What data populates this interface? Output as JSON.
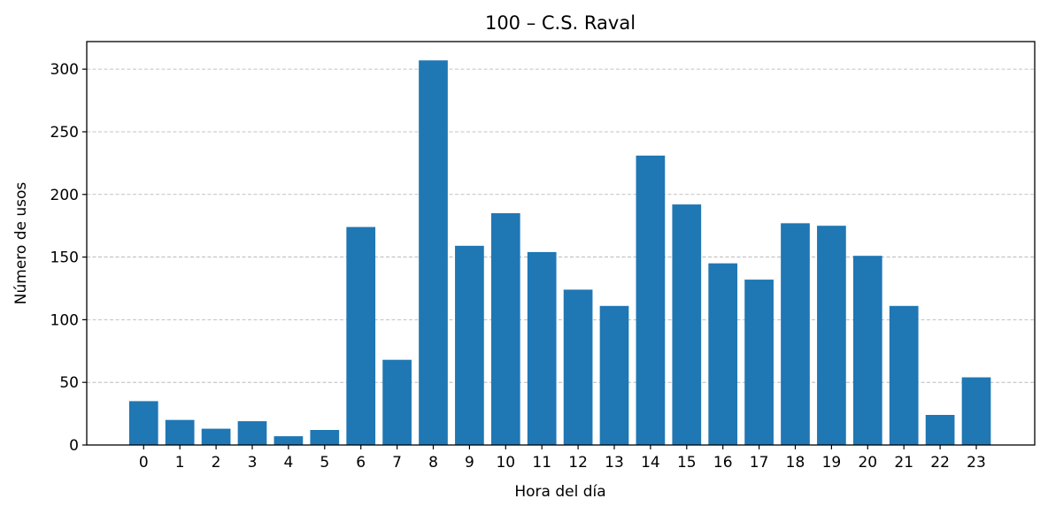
{
  "chart_data": {
    "type": "bar",
    "title": "100 – C.S. Raval",
    "xlabel": "Hora del día",
    "ylabel": "Número de usos",
    "categories": [
      "0",
      "1",
      "2",
      "3",
      "4",
      "5",
      "6",
      "7",
      "8",
      "9",
      "10",
      "11",
      "12",
      "13",
      "14",
      "15",
      "16",
      "17",
      "18",
      "19",
      "20",
      "21",
      "22",
      "23"
    ],
    "values": [
      35,
      20,
      13,
      19,
      7,
      12,
      174,
      68,
      307,
      159,
      185,
      154,
      124,
      111,
      231,
      192,
      145,
      132,
      177,
      175,
      151,
      111,
      24,
      54
    ],
    "ylim": [
      0,
      322
    ],
    "yticks": [
      0,
      50,
      100,
      150,
      200,
      250,
      300
    ],
    "grid": "y-dashed",
    "bar_color": "#1f77b4"
  }
}
